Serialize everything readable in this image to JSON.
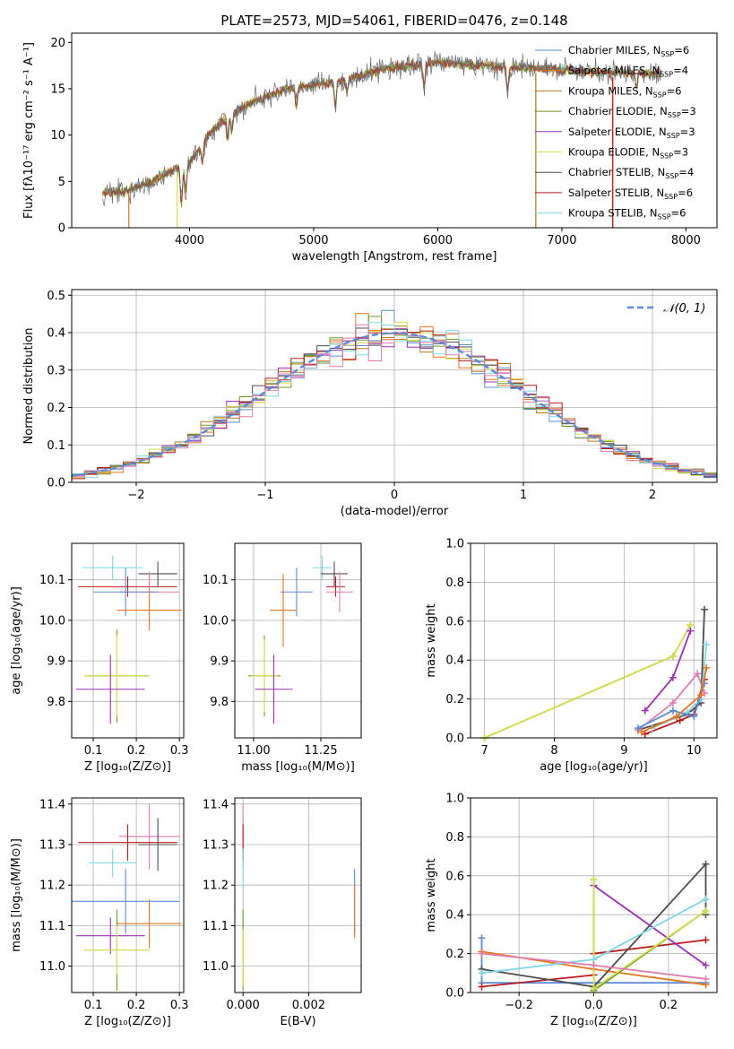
{
  "colors": {
    "chabrier_miles": "#5B8BD9",
    "salpeter_miles": "#E8761E",
    "kroupa_miles": "#B87A1C",
    "chabrier_elodie": "#6E9A26",
    "salpeter_elodie": "#9B30B5",
    "kroupa_elodie": "#D6E04A",
    "chabrier_stelib": "#4D4D4D",
    "salpeter_stelib": "#B81C1C",
    "kroupa_stelib": "#7DD8E6",
    "pink": "#E07BB0",
    "gaussian": "#5B8BD9",
    "spectrum_grey": "#6a6a6a"
  },
  "chart_data": [
    {
      "id": "spectrum",
      "type": "line",
      "title": "PLATE=2573, MJD=54061, FIBERID=0476, z=0.148",
      "xlabel": "wavelength [Angstrom, rest frame]",
      "ylabel": "Flux [fλ10⁻¹⁷ erg cm⁻² s⁻¹ A⁻¹]",
      "xlim": [
        3050,
        8250
      ],
      "ylim": [
        0,
        21
      ],
      "xticks": [
        "4000",
        "5000",
        "6000",
        "7000",
        "8000"
      ],
      "xtick_values": [
        4000,
        5000,
        6000,
        7000,
        8000
      ],
      "yticks": [
        "0",
        "5",
        "10",
        "15",
        "20"
      ],
      "ytick_values": [
        0,
        5,
        10,
        15,
        20
      ],
      "wavelength_range": [
        3300,
        7800
      ],
      "continuum": [
        [
          3300,
          3.8
        ],
        [
          3500,
          4.0
        ],
        [
          3700,
          5.0
        ],
        [
          3900,
          6.5
        ],
        [
          4000,
          7.0
        ],
        [
          4150,
          10.0
        ],
        [
          4300,
          12.0
        ],
        [
          4500,
          13.5
        ],
        [
          4800,
          15.0
        ],
        [
          5200,
          15.8
        ],
        [
          5600,
          17.2
        ],
        [
          6000,
          17.8
        ],
        [
          6400,
          17.5
        ],
        [
          6800,
          17.2
        ],
        [
          7200,
          16.8
        ],
        [
          7600,
          16.7
        ],
        [
          7800,
          16.6
        ]
      ],
      "model_edges": [
        [
          3510,
          "salpeter_miles"
        ],
        [
          3900,
          "kroupa_elodie"
        ],
        [
          6790,
          "kroupa_stelib"
        ],
        [
          6790,
          "kroupa_miles"
        ],
        [
          7410,
          "salpeter_miles"
        ],
        [
          7410,
          "salpeter_stelib"
        ]
      ],
      "legend_placement": "top-right",
      "legend": [
        {
          "label": "Chabrier MILES, N",
          "sub": "SSP",
          "tail": "=6",
          "color": "chabrier_miles"
        },
        {
          "label": "Salpeter MILES, N",
          "sub": "SSP",
          "tail": "=4",
          "color": "salpeter_miles"
        },
        {
          "label": "Kroupa MILES, N",
          "sub": "SSP",
          "tail": "=6",
          "color": "kroupa_miles"
        },
        {
          "label": "Chabrier ELODIE, N",
          "sub": "SSP",
          "tail": "=3",
          "color": "chabrier_elodie"
        },
        {
          "label": "Salpeter ELODIE, N",
          "sub": "SSP",
          "tail": "=3",
          "color": "salpeter_elodie"
        },
        {
          "label": "Kroupa ELODIE, N",
          "sub": "SSP",
          "tail": "=3",
          "color": "kroupa_elodie"
        },
        {
          "label": "Chabrier STELIB, N",
          "sub": "SSP",
          "tail": "=4",
          "color": "chabrier_stelib"
        },
        {
          "label": "Salpeter STELIB, N",
          "sub": "SSP",
          "tail": "=6",
          "color": "salpeter_stelib"
        },
        {
          "label": "Kroupa STELIB, N",
          "sub": "SSP",
          "tail": "=6",
          "color": "kroupa_stelib"
        }
      ]
    },
    {
      "id": "residuals",
      "type": "histogram",
      "xlabel": "(data-model)/error",
      "ylabel": "Normed distribution",
      "xlim": [
        -2.5,
        2.5
      ],
      "ylim": [
        0,
        0.515
      ],
      "grid": true,
      "xticks": [
        "−2",
        "−1",
        "0",
        "1",
        "2"
      ],
      "xtick_values": [
        -2,
        -1,
        0,
        1,
        2
      ],
      "yticks": [
        "0.0",
        "0.1",
        "0.2",
        "0.3",
        "0.4",
        "0.5"
      ],
      "ytick_values": [
        0,
        0.1,
        0.2,
        0.3,
        0.4,
        0.5
      ],
      "bin_width": 0.1,
      "legend": [
        {
          "label": "𝒩(0, 1)",
          "color": "gaussian",
          "style": "dashed"
        }
      ],
      "legend_placement": "top-right"
    },
    {
      "id": "z_vs_age",
      "type": "errorbar",
      "xlabel": "Z [log₁₀(Z/Z⊙)]",
      "ylabel": "age  [log₁₀(age/yr)]",
      "xlim": [
        0.05,
        0.31
      ],
      "ylim": [
        9.71,
        10.19
      ],
      "grid": true,
      "xticks": [
        "0.1",
        "0.2",
        "0.3"
      ],
      "xtick_values": [
        0.1,
        0.2,
        0.3
      ],
      "yticks": [
        "9.8",
        "9.9",
        "10.0",
        "10.1"
      ],
      "ytick_values": [
        9.8,
        9.9,
        10.0,
        10.1
      ],
      "points": [
        {
          "color": "kroupa_stelib",
          "x": 0.145,
          "y": 10.13,
          "xerr": 0.07,
          "yerr": 0.03
        },
        {
          "color": "chabrier_stelib",
          "x": 0.25,
          "y": 10.115,
          "xerr": 0.045,
          "yerr": 0.03
        },
        {
          "color": "salpeter_stelib",
          "x": 0.18,
          "y": 10.083,
          "xerr": 0.115,
          "yerr": 0.025
        },
        {
          "color": "pink",
          "x": 0.23,
          "y": 10.07,
          "xerr": 0.07,
          "yerr": 0.05
        },
        {
          "color": "chabrier_miles",
          "x": 0.175,
          "y": 10.07,
          "xerr": 0.075,
          "yerr": 0.06
        },
        {
          "color": "salpeter_miles",
          "x": 0.23,
          "y": 10.025,
          "xerr": 0.075,
          "yerr": 0.05
        },
        {
          "color": "chabrier_elodie",
          "x": 0.155,
          "y": 9.863,
          "xerr": 0.075,
          "yerr": 0.115
        },
        {
          "color": "kroupa_elodie",
          "x": 0.155,
          "y": 9.863,
          "xerr": 0.075,
          "yerr": 0.1
        },
        {
          "color": "salpeter_elodie",
          "x": 0.14,
          "y": 9.83,
          "xerr": 0.08,
          "yerr": 0.085
        }
      ]
    },
    {
      "id": "mass_vs_age",
      "type": "errorbar",
      "xlabel": "mass [log₁₀(M/M⊙)]",
      "ylabel": "",
      "xlim": [
        10.93,
        11.4
      ],
      "ylim": [
        9.71,
        10.19
      ],
      "grid": true,
      "xticks": [
        "11.00",
        "11.25"
      ],
      "xtick_values": [
        11.0,
        11.25
      ],
      "yticks": [
        "9.8",
        "9.9",
        "10.0",
        "10.1"
      ],
      "ytick_values": [
        9.8,
        9.9,
        10.0,
        10.1
      ],
      "points": [
        {
          "color": "kroupa_stelib",
          "x": 11.255,
          "y": 10.13,
          "xerr": 0.035,
          "yerr": 0.03
        },
        {
          "color": "chabrier_stelib",
          "x": 11.3,
          "y": 10.115,
          "xerr": 0.05,
          "yerr": 0.03
        },
        {
          "color": "salpeter_stelib",
          "x": 11.305,
          "y": 10.083,
          "xerr": 0.035,
          "yerr": 0.025
        },
        {
          "color": "pink",
          "x": 11.32,
          "y": 10.07,
          "xerr": 0.05,
          "yerr": 0.05
        },
        {
          "color": "chabrier_miles",
          "x": 11.16,
          "y": 10.07,
          "xerr": 0.06,
          "yerr": 0.06
        },
        {
          "color": "salpeter_miles",
          "x": 11.11,
          "y": 10.025,
          "xerr": 0.05,
          "yerr": 0.09
        },
        {
          "color": "chabrier_elodie",
          "x": 11.04,
          "y": 9.863,
          "xerr": 0.06,
          "yerr": 0.1
        },
        {
          "color": "kroupa_elodie",
          "x": 11.04,
          "y": 9.863,
          "xerr": 0.05,
          "yerr": 0.09
        },
        {
          "color": "salpeter_elodie",
          "x": 11.075,
          "y": 9.83,
          "xerr": 0.07,
          "yerr": 0.085
        }
      ]
    },
    {
      "id": "age_vs_weight",
      "type": "line",
      "xlabel": "age  [log₁₀(age/yr)]",
      "ylabel": "mass weight",
      "xlim": [
        6.8,
        10.33
      ],
      "ylim": [
        0,
        1
      ],
      "grid": true,
      "xticks": [
        "7",
        "8",
        "9",
        "10"
      ],
      "xtick_values": [
        7,
        8,
        9,
        10
      ],
      "yticks": [
        "0.0",
        "0.2",
        "0.4",
        "0.6",
        "0.8",
        "1.0"
      ],
      "ytick_values": [
        0,
        0.2,
        0.4,
        0.6,
        0.8,
        1.0
      ],
      "series": [
        {
          "color": "chabrier_elodie",
          "x": [
            7.0,
            9.7,
            9.95
          ],
          "y": [
            0.0,
            0.42,
            0.58
          ]
        },
        {
          "color": "kroupa_elodie",
          "x": [
            7.0,
            9.7,
            9.95
          ],
          "y": [
            0.0,
            0.42,
            0.58
          ]
        },
        {
          "color": "salpeter_elodie",
          "x": [
            9.3,
            9.7,
            9.95
          ],
          "y": [
            0.14,
            0.31,
            0.55
          ]
        },
        {
          "color": "chabrier_stelib",
          "x": [
            9.2,
            9.9,
            10.1,
            10.15
          ],
          "y": [
            0.04,
            0.12,
            0.18,
            0.66
          ]
        },
        {
          "color": "salpeter_stelib",
          "x": [
            9.3,
            9.8,
            10.0,
            10.15
          ],
          "y": [
            0.02,
            0.09,
            0.12,
            0.3
          ]
        },
        {
          "color": "kroupa_stelib",
          "x": [
            9.4,
            9.9,
            10.1,
            10.18
          ],
          "y": [
            0.05,
            0.13,
            0.2,
            0.48
          ]
        },
        {
          "color": "pink",
          "x": [
            9.2,
            9.7,
            10.05,
            10.15
          ],
          "y": [
            0.04,
            0.18,
            0.33,
            0.23
          ]
        },
        {
          "color": "chabrier_miles",
          "x": [
            9.2,
            9.7,
            10.0,
            10.15
          ],
          "y": [
            0.05,
            0.14,
            0.11,
            0.28
          ]
        },
        {
          "color": "salpeter_miles",
          "x": [
            9.25,
            9.75,
            10.1,
            10.18
          ],
          "y": [
            0.03,
            0.11,
            0.22,
            0.36
          ]
        }
      ]
    },
    {
      "id": "z_vs_mass",
      "type": "errorbar",
      "xlabel": "Z [log₁₀(Z/Z⊙)]",
      "ylabel": "mass [log₁₀(M/M⊙)]",
      "xlim": [
        0.05,
        0.31
      ],
      "ylim": [
        10.935,
        11.415
      ],
      "grid": true,
      "xticks": [
        "0.1",
        "0.2",
        "0.3"
      ],
      "xtick_values": [
        0.1,
        0.2,
        0.3
      ],
      "yticks": [
        "11.0",
        "11.1",
        "11.2",
        "11.3",
        "11.4"
      ],
      "ytick_values": [
        11.0,
        11.1,
        11.2,
        11.3,
        11.4
      ],
      "points": [
        {
          "color": "pink",
          "x": 0.23,
          "y": 11.32,
          "xerr": 0.07,
          "yerr": 0.08
        },
        {
          "color": "salpeter_stelib",
          "x": 0.18,
          "y": 11.305,
          "xerr": 0.115,
          "yerr": 0.045
        },
        {
          "color": "chabrier_stelib",
          "x": 0.25,
          "y": 11.3,
          "xerr": 0.045,
          "yerr": 0.065
        },
        {
          "color": "kroupa_stelib",
          "x": 0.145,
          "y": 11.255,
          "xerr": 0.055,
          "yerr": 0.035
        },
        {
          "color": "chabrier_miles",
          "x": 0.175,
          "y": 11.16,
          "xerr": 0.125,
          "yerr": 0.08
        },
        {
          "color": "salpeter_miles",
          "x": 0.23,
          "y": 11.105,
          "xerr": 0.075,
          "yerr": 0.06
        },
        {
          "color": "salpeter_elodie",
          "x": 0.14,
          "y": 11.075,
          "xerr": 0.08,
          "yerr": 0.045
        },
        {
          "color": "chabrier_elodie",
          "x": 0.155,
          "y": 11.04,
          "xerr": 0.075,
          "yerr": 0.1
        },
        {
          "color": "kroupa_elodie",
          "x": 0.155,
          "y": 11.04,
          "xerr": 0.075,
          "yerr": 0.06
        }
      ]
    },
    {
      "id": "ebv_vs_mass",
      "type": "errorbar",
      "xlabel": "E(B-V)",
      "ylabel": "",
      "xlim": [
        -0.00025,
        0.0036
      ],
      "ylim": [
        10.935,
        11.415
      ],
      "grid": true,
      "xticks": [
        "0.000",
        "0.002"
      ],
      "xtick_values": [
        0.0,
        0.002
      ],
      "yticks": [
        "11.0",
        "11.1",
        "11.2",
        "11.3",
        "11.4"
      ],
      "ytick_values": [
        11.0,
        11.1,
        11.2,
        11.3,
        11.4
      ],
      "points": [
        {
          "color": "pink",
          "x": 0.0,
          "y": 11.32,
          "xerr": 0.0,
          "yerr": 0.08
        },
        {
          "color": "salpeter_stelib",
          "x": 0.0,
          "y": 11.305,
          "xerr": 0.0,
          "yerr": 0.045
        },
        {
          "color": "kroupa_stelib",
          "x": 0.0,
          "y": 11.24,
          "xerr": 0.0,
          "yerr": 0.05
        },
        {
          "color": "chabrier_elodie",
          "x": 0.0,
          "y": 11.04,
          "xerr": 0.0,
          "yerr": 0.1
        },
        {
          "color": "kroupa_elodie",
          "x": 0.0,
          "y": 11.02,
          "xerr": 0.0,
          "yerr": 0.07
        },
        {
          "color": "chabrier_miles",
          "x": 0.0034,
          "y": 11.16,
          "xerr": 0.0,
          "yerr": 0.08
        },
        {
          "color": "salpeter_miles",
          "x": 0.0034,
          "y": 11.135,
          "xerr": 0.0,
          "yerr": 0.065
        }
      ]
    },
    {
      "id": "z_vs_weight",
      "type": "line",
      "xlabel": "Z [log₁₀(Z/Z⊙)]",
      "ylabel": "mass weight",
      "xlim": [
        -0.33,
        0.33
      ],
      "ylim": [
        0,
        1
      ],
      "grid": true,
      "xticks": [
        "−0.2",
        "0.0",
        "0.2"
      ],
      "xtick_values": [
        -0.2,
        0.0,
        0.2
      ],
      "yticks": [
        "0.0",
        "0.2",
        "0.4",
        "0.6",
        "0.8",
        "1.0"
      ],
      "ytick_values": [
        0,
        0.2,
        0.4,
        0.6,
        0.8,
        1.0
      ],
      "series": [
        {
          "color": "chabrier_miles",
          "x": [
            -0.3,
            -0.3,
            0.0,
            0.3
          ],
          "y": [
            0.28,
            0.05,
            0.05,
            0.05
          ]
        },
        {
          "color": "salpeter_miles",
          "x": [
            -0.3,
            0.0,
            0.3
          ],
          "y": [
            0.21,
            0.12,
            0.04
          ]
        },
        {
          "color": "salpeter_stelib",
          "x": [
            -0.3,
            0.0,
            0.0,
            0.3
          ],
          "y": [
            0.03,
            0.09,
            0.2,
            0.27
          ]
        },
        {
          "color": "chabrier_stelib",
          "x": [
            -0.3,
            0.0,
            0.3,
            0.3
          ],
          "y": [
            0.12,
            0.03,
            0.66,
            0.4
          ]
        },
        {
          "color": "salpeter_elodie",
          "x": [
            0.0,
            0.3
          ],
          "y": [
            0.55,
            0.14
          ]
        },
        {
          "color": "chabrier_elodie",
          "x": [
            0.0,
            0.0,
            0.3
          ],
          "y": [
            0.58,
            0.01,
            0.42
          ]
        },
        {
          "color": "kroupa_elodie",
          "x": [
            0.0,
            0.0,
            0.3
          ],
          "y": [
            0.58,
            0.02,
            0.42
          ]
        },
        {
          "color": "kroupa_stelib",
          "x": [
            -0.3,
            0.0,
            0.3
          ],
          "y": [
            0.1,
            0.17,
            0.48
          ]
        },
        {
          "color": "pink",
          "x": [
            -0.3,
            0.0,
            0.3
          ],
          "y": [
            0.2,
            0.14,
            0.07
          ]
        }
      ]
    }
  ]
}
